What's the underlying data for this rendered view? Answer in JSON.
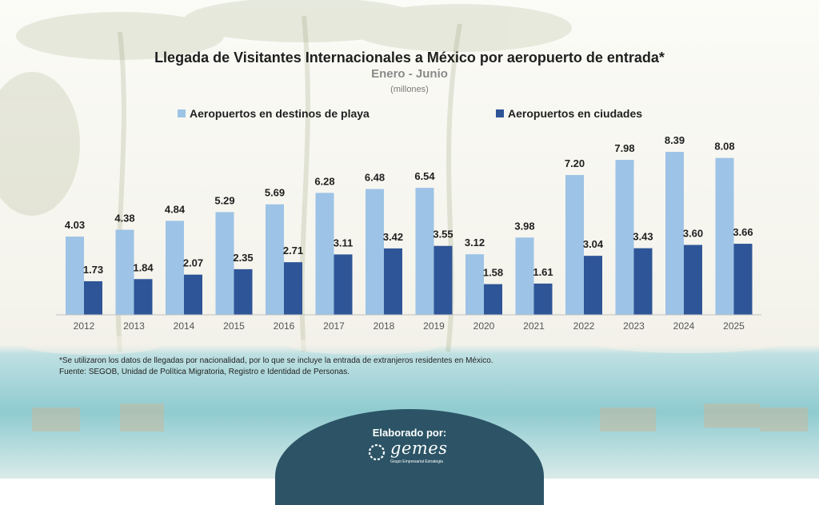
{
  "header": {
    "title": "Llegada de Visitantes Internacionales a México por aeropuerto de entrada*",
    "subtitle": "Enero - Junio",
    "units": "(millones)"
  },
  "chart_data": {
    "type": "bar",
    "categories": [
      "2012",
      "2013",
      "2014",
      "2015",
      "2016",
      "2017",
      "2018",
      "2019",
      "2020",
      "2021",
      "2022",
      "2023",
      "2024",
      "2025"
    ],
    "series": [
      {
        "name": "Aeropuertos en destinos de playa",
        "color": "#9dc3e6",
        "values": [
          4.03,
          4.38,
          4.84,
          5.29,
          5.69,
          6.28,
          6.48,
          6.54,
          3.12,
          3.98,
          7.2,
          7.98,
          8.39,
          8.08
        ],
        "labels": [
          "4.03",
          "4.38",
          "4.84",
          "5.29",
          "5.69",
          "6.28",
          "6.48",
          "6.54",
          "3.12",
          "3.98",
          "7.20",
          "7.98",
          "8.39",
          "8.08"
        ]
      },
      {
        "name": "Aeropuertos en ciudades",
        "color": "#2e5597",
        "values": [
          1.73,
          1.84,
          2.07,
          2.35,
          2.71,
          3.11,
          3.42,
          3.55,
          1.58,
          1.61,
          3.04,
          3.43,
          3.6,
          3.66
        ],
        "labels": [
          "1.73",
          "1.84",
          "2.07",
          "2.35",
          "2.71",
          "3.11",
          "3.42",
          "3.55",
          "1.58",
          "1.61",
          "3.04",
          "3.43",
          "3.60",
          "3.66"
        ]
      }
    ],
    "ylim": [
      0,
      9
    ],
    "grid": false,
    "legend_position": "top"
  },
  "notes": {
    "line1": "*Se utilizaron los datos de llegadas por nacionalidad, por lo que se incluye la entrada de extranjeros residentes en México.",
    "line2": "Fuente: SEGOB, Unidad de Política Migratoria, Registro e Identidad de Personas."
  },
  "footer": {
    "made_by": "Elaborado por:",
    "logo_word": "gemes",
    "logo_sub": "Grupo Empresarial Estrategia",
    "badge_color": "#2c5466"
  }
}
